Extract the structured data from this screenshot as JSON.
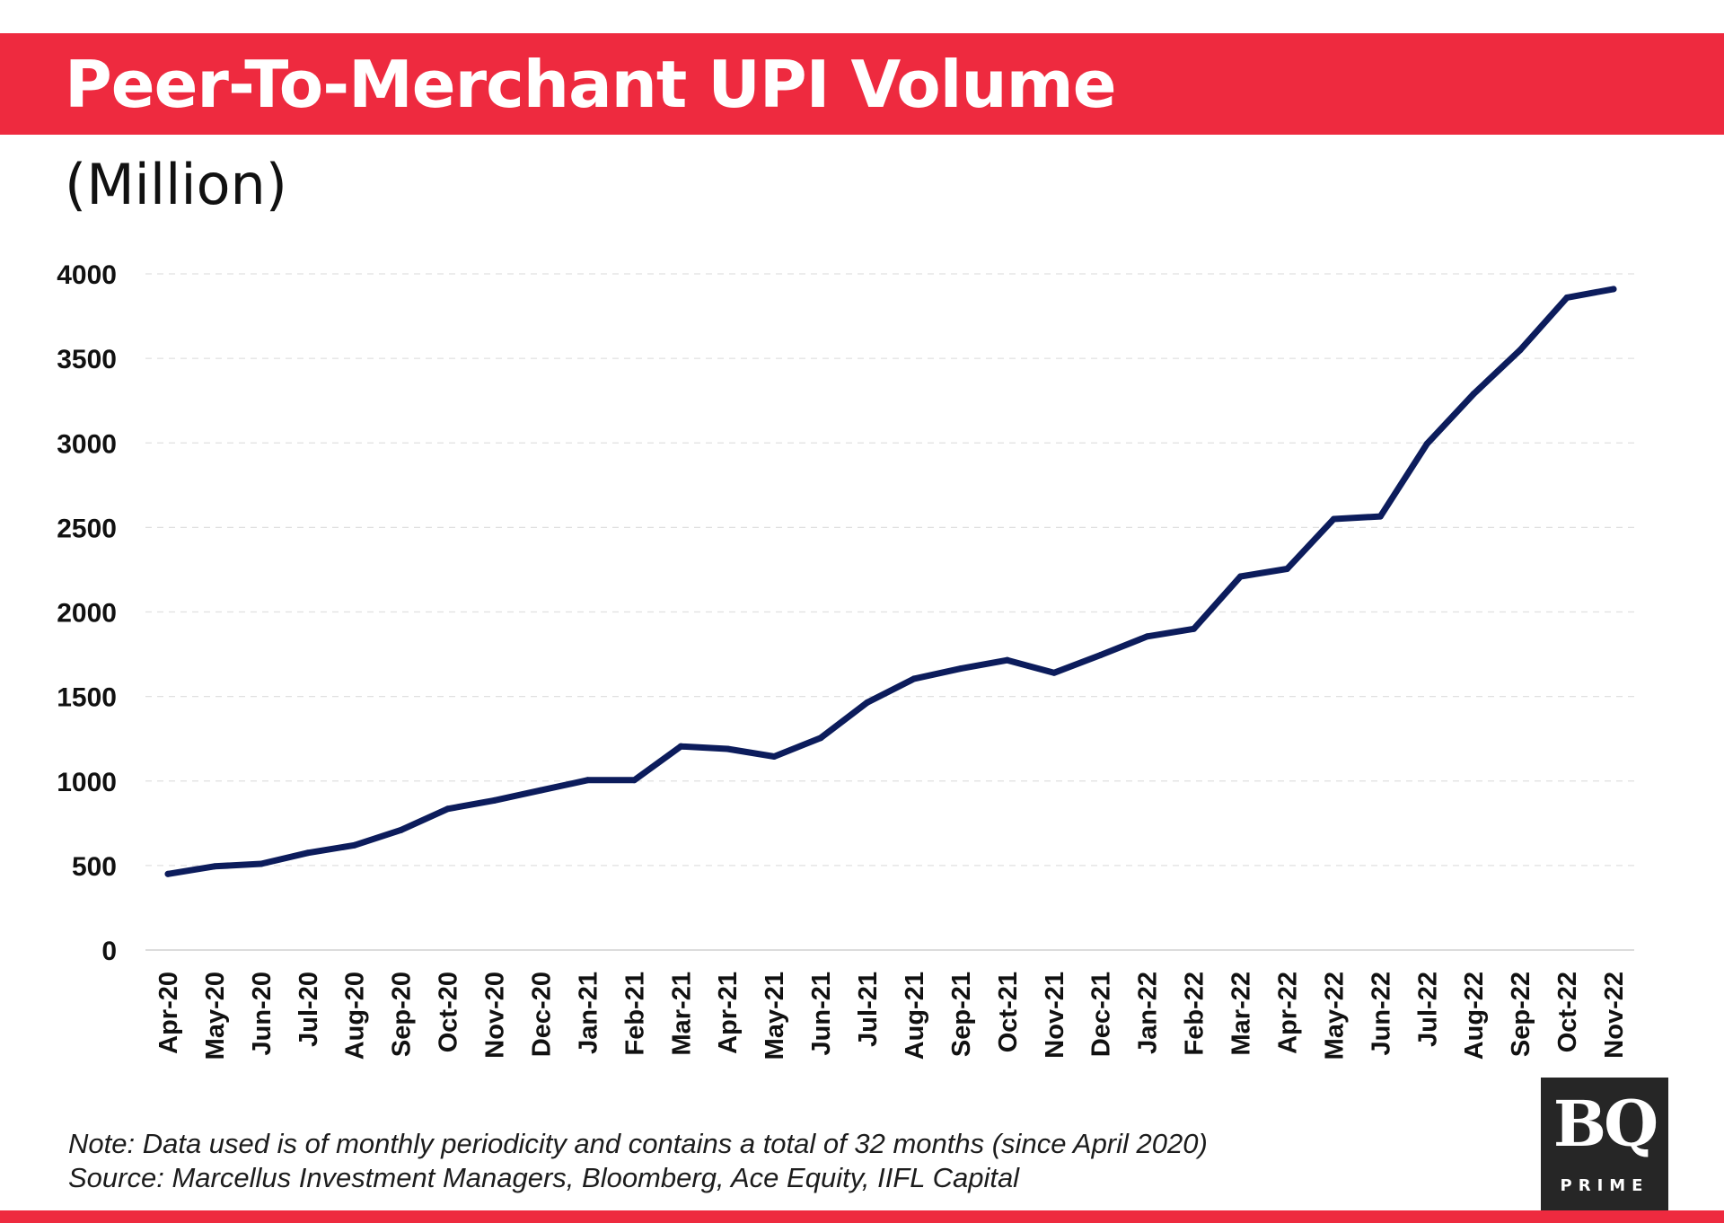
{
  "header": {
    "title": "Peer-To-Merchant UPI Volume",
    "unit": "(Million)",
    "accent_color": "#ee2a3f"
  },
  "chart_data": {
    "type": "line",
    "title": "Peer-To-Merchant UPI Volume",
    "ylabel": "(Million)",
    "xlabel": "",
    "ylim": [
      0,
      4000
    ],
    "yticks": [
      0,
      500,
      1000,
      1500,
      2000,
      2500,
      3000,
      3500,
      4000
    ],
    "grid": true,
    "line_color": "#0c1c5c",
    "categories": [
      "Apr-20",
      "May-20",
      "Jun-20",
      "Jul-20",
      "Aug-20",
      "Sep-20",
      "Oct-20",
      "Nov-20",
      "Dec-20",
      "Jan-21",
      "Feb-21",
      "Mar-21",
      "Apr-21",
      "May-21",
      "Jun-21",
      "Jul-21",
      "Aug-21",
      "Sep-21",
      "Oct-21",
      "Nov-21",
      "Dec-21",
      "Jan-22",
      "Feb-22",
      "Mar-22",
      "Apr-22",
      "May-22",
      "Jun-22",
      "Jul-22",
      "Aug-22",
      "Sep-22",
      "Oct-22",
      "Nov-22"
    ],
    "series": [
      {
        "name": "Peer-To-Merchant UPI Volume",
        "values": [
          450,
          495,
          510,
          575,
          620,
          710,
          835,
          885,
          945,
          1005,
          1005,
          1205,
          1190,
          1145,
          1255,
          1465,
          1605,
          1665,
          1715,
          1640,
          1745,
          1855,
          1900,
          2210,
          2255,
          2550,
          2565,
          2995,
          3290,
          3550,
          3860,
          3910
        ]
      }
    ]
  },
  "footer": {
    "note": "Note: Data used is of monthly periodicity and contains a total of 32 months (since April 2020)",
    "source": "Source: Marcellus Investment Managers, Bloomberg, Ace Equity, IIFL Capital"
  },
  "logo": {
    "main": "BQ",
    "sub": "PRIME"
  }
}
